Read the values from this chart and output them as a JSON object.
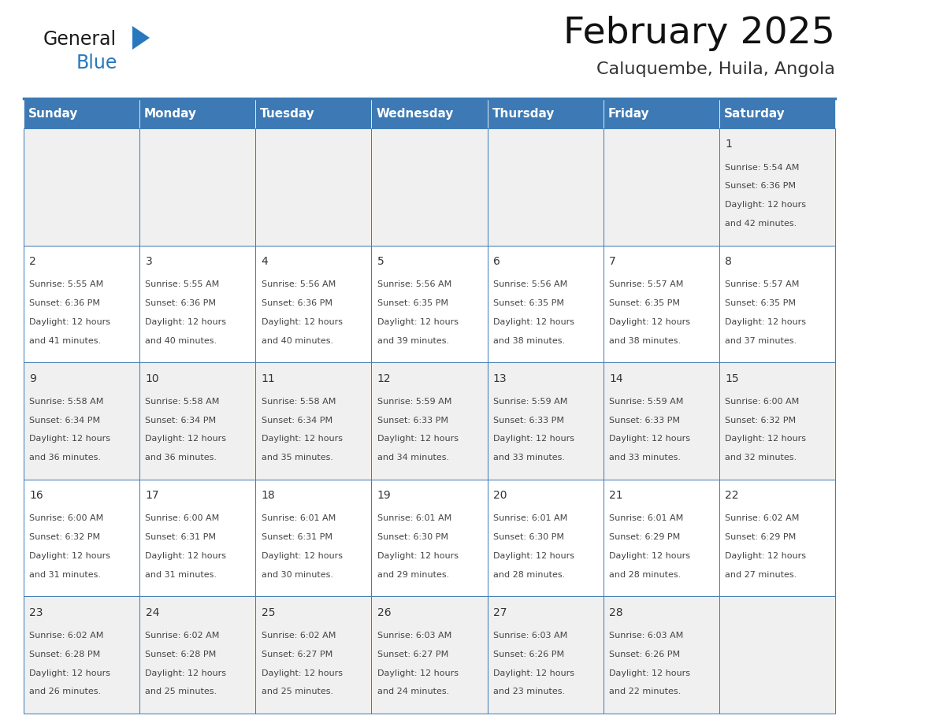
{
  "title": "February 2025",
  "subtitle": "Caluquembe, Huila, Angola",
  "days_of_week": [
    "Sunday",
    "Monday",
    "Tuesday",
    "Wednesday",
    "Thursday",
    "Friday",
    "Saturday"
  ],
  "header_bg": "#3d7ab5",
  "header_text_color": "#ffffff",
  "cell_bg_odd": "#f0f0f0",
  "cell_bg_even": "#ffffff",
  "border_color": "#3d7ab5",
  "text_color": "#444444",
  "day_number_color": "#333333",
  "calendar_data": [
    [
      null,
      null,
      null,
      null,
      null,
      null,
      {
        "day": 1,
        "sunrise": "5:54 AM",
        "sunset": "6:36 PM",
        "daylight": "12 hours",
        "daylight2": "and 42 minutes."
      }
    ],
    [
      {
        "day": 2,
        "sunrise": "5:55 AM",
        "sunset": "6:36 PM",
        "daylight": "12 hours",
        "daylight2": "and 41 minutes."
      },
      {
        "day": 3,
        "sunrise": "5:55 AM",
        "sunset": "6:36 PM",
        "daylight": "12 hours",
        "daylight2": "and 40 minutes."
      },
      {
        "day": 4,
        "sunrise": "5:56 AM",
        "sunset": "6:36 PM",
        "daylight": "12 hours",
        "daylight2": "and 40 minutes."
      },
      {
        "day": 5,
        "sunrise": "5:56 AM",
        "sunset": "6:35 PM",
        "daylight": "12 hours",
        "daylight2": "and 39 minutes."
      },
      {
        "day": 6,
        "sunrise": "5:56 AM",
        "sunset": "6:35 PM",
        "daylight": "12 hours",
        "daylight2": "and 38 minutes."
      },
      {
        "day": 7,
        "sunrise": "5:57 AM",
        "sunset": "6:35 PM",
        "daylight": "12 hours",
        "daylight2": "and 38 minutes."
      },
      {
        "day": 8,
        "sunrise": "5:57 AM",
        "sunset": "6:35 PM",
        "daylight": "12 hours",
        "daylight2": "and 37 minutes."
      }
    ],
    [
      {
        "day": 9,
        "sunrise": "5:58 AM",
        "sunset": "6:34 PM",
        "daylight": "12 hours",
        "daylight2": "and 36 minutes."
      },
      {
        "day": 10,
        "sunrise": "5:58 AM",
        "sunset": "6:34 PM",
        "daylight": "12 hours",
        "daylight2": "and 36 minutes."
      },
      {
        "day": 11,
        "sunrise": "5:58 AM",
        "sunset": "6:34 PM",
        "daylight": "12 hours",
        "daylight2": "and 35 minutes."
      },
      {
        "day": 12,
        "sunrise": "5:59 AM",
        "sunset": "6:33 PM",
        "daylight": "12 hours",
        "daylight2": "and 34 minutes."
      },
      {
        "day": 13,
        "sunrise": "5:59 AM",
        "sunset": "6:33 PM",
        "daylight": "12 hours",
        "daylight2": "and 33 minutes."
      },
      {
        "day": 14,
        "sunrise": "5:59 AM",
        "sunset": "6:33 PM",
        "daylight": "12 hours",
        "daylight2": "and 33 minutes."
      },
      {
        "day": 15,
        "sunrise": "6:00 AM",
        "sunset": "6:32 PM",
        "daylight": "12 hours",
        "daylight2": "and 32 minutes."
      }
    ],
    [
      {
        "day": 16,
        "sunrise": "6:00 AM",
        "sunset": "6:32 PM",
        "daylight": "12 hours",
        "daylight2": "and 31 minutes."
      },
      {
        "day": 17,
        "sunrise": "6:00 AM",
        "sunset": "6:31 PM",
        "daylight": "12 hours",
        "daylight2": "and 31 minutes."
      },
      {
        "day": 18,
        "sunrise": "6:01 AM",
        "sunset": "6:31 PM",
        "daylight": "12 hours",
        "daylight2": "and 30 minutes."
      },
      {
        "day": 19,
        "sunrise": "6:01 AM",
        "sunset": "6:30 PM",
        "daylight": "12 hours",
        "daylight2": "and 29 minutes."
      },
      {
        "day": 20,
        "sunrise": "6:01 AM",
        "sunset": "6:30 PM",
        "daylight": "12 hours",
        "daylight2": "and 28 minutes."
      },
      {
        "day": 21,
        "sunrise": "6:01 AM",
        "sunset": "6:29 PM",
        "daylight": "12 hours",
        "daylight2": "and 28 minutes."
      },
      {
        "day": 22,
        "sunrise": "6:02 AM",
        "sunset": "6:29 PM",
        "daylight": "12 hours",
        "daylight2": "and 27 minutes."
      }
    ],
    [
      {
        "day": 23,
        "sunrise": "6:02 AM",
        "sunset": "6:28 PM",
        "daylight": "12 hours",
        "daylight2": "and 26 minutes."
      },
      {
        "day": 24,
        "sunrise": "6:02 AM",
        "sunset": "6:28 PM",
        "daylight": "12 hours",
        "daylight2": "and 25 minutes."
      },
      {
        "day": 25,
        "sunrise": "6:02 AM",
        "sunset": "6:27 PM",
        "daylight": "12 hours",
        "daylight2": "and 25 minutes."
      },
      {
        "day": 26,
        "sunrise": "6:03 AM",
        "sunset": "6:27 PM",
        "daylight": "12 hours",
        "daylight2": "and 24 minutes."
      },
      {
        "day": 27,
        "sunrise": "6:03 AM",
        "sunset": "6:26 PM",
        "daylight": "12 hours",
        "daylight2": "and 23 minutes."
      },
      {
        "day": 28,
        "sunrise": "6:03 AM",
        "sunset": "6:26 PM",
        "daylight": "12 hours",
        "daylight2": "and 22 minutes."
      },
      null
    ]
  ],
  "num_weeks": 5,
  "num_cols": 7,
  "logo_color_general": "#1a1a1a",
  "logo_color_blue": "#2878be",
  "logo_triangle_color": "#2878be"
}
